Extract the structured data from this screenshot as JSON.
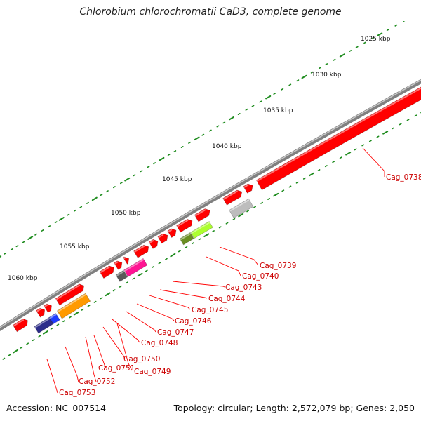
{
  "title": "Chlorobium chlorochromatii CaD3, complete genome",
  "footer": {
    "accession": "Accession: NC_007514",
    "summary": "Topology: circular; Length: 2,572,079 bp; Genes: 2,050"
  },
  "colors": {
    "backbone": "#808080",
    "tick": "#1e8c1e",
    "label_line": "#ff0000",
    "label_text": "#cc0000",
    "gene_default": "#ff0000",
    "gene_gray": "#bdbdbd",
    "gene_dark": "#5a5a5a",
    "gene_olive": "#6b8e23",
    "gene_lime": "#adff2f",
    "gene_magenta": "#ff1493",
    "gene_orange": "#ff9a00",
    "gene_navy": "#2d2d8a",
    "gene_blue": "#1f3cff"
  },
  "scale_labels": [
    "1025 kbp",
    "1030 kbp",
    "1035 kbp",
    "1040 kbp",
    "1045 kbp",
    "1050 kbp",
    "1055 kbp",
    "1060 kbp"
  ],
  "gene_labels": [
    "Cag_0738",
    "Cag_0739",
    "Cag_0740",
    "Cag_0743",
    "Cag_0744",
    "Cag_0745",
    "Cag_0746",
    "Cag_0747",
    "Cag_0748",
    "Cag_0750",
    "Cag_0751",
    "Cag_0749",
    "Cag_0752",
    "Cag_0753"
  ]
}
